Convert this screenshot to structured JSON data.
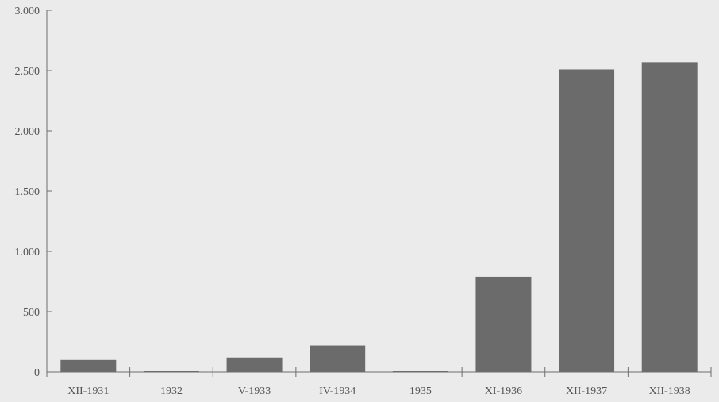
{
  "chart_data": {
    "type": "bar",
    "title": "",
    "xlabel": "",
    "ylabel": "",
    "categories": [
      "XII-1931",
      "1932",
      "V-1933",
      "IV-1934",
      "1935",
      "XI-1936",
      "XII-1937",
      "XII-1938"
    ],
    "values": [
      100,
      0,
      120,
      220,
      0,
      790,
      2510,
      2570
    ],
    "ylim": [
      0,
      3000
    ],
    "yticks": [
      0,
      500,
      1000,
      1500,
      2000,
      2500,
      3000
    ],
    "ytick_labels": [
      "0",
      "500",
      "1.000",
      "1.500",
      "2.000",
      "2.500",
      "3.000"
    ],
    "grid": false,
    "legend": "none",
    "bar_color": "#6b6b6b",
    "axis_color": "#6e6e6e",
    "text_color": "#555555"
  }
}
